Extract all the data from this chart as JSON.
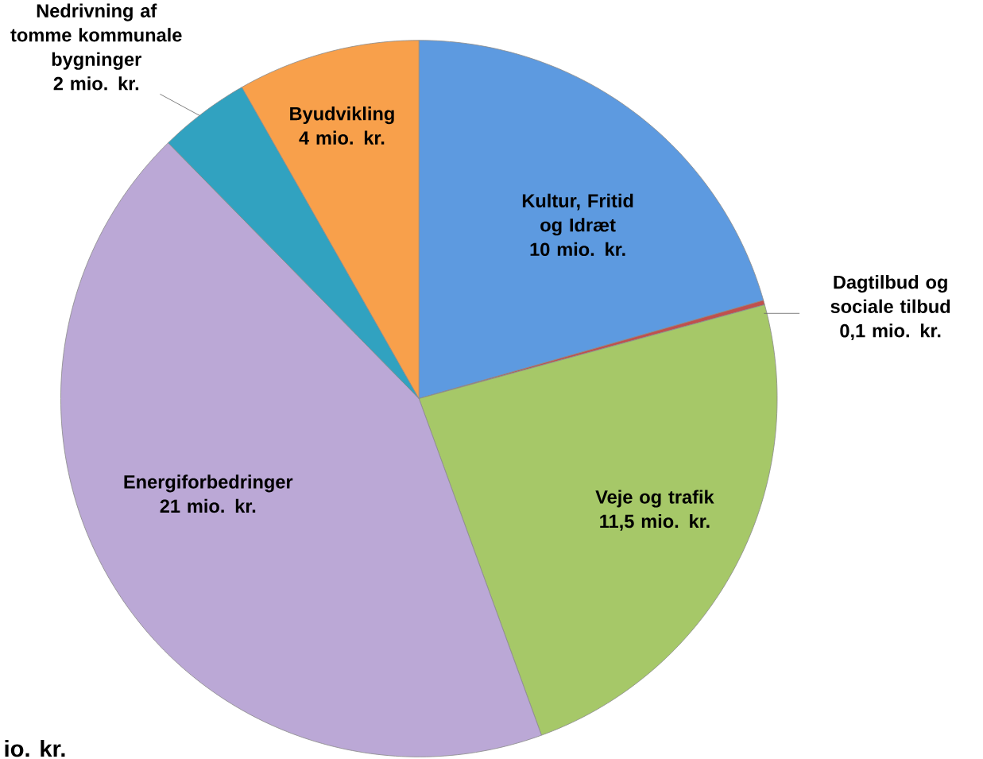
{
  "chart_data": {
    "type": "pie",
    "categories": [
      "Kultur, Fritid og Idræt",
      "Dagtilbud og sociale tilbud",
      "Veje og trafik",
      "Energiforbedringer",
      "Nedrivning af tomme kommunale bygninger",
      "Byudvikling"
    ],
    "values": [
      10,
      0.1,
      11.5,
      21,
      2,
      4
    ],
    "value_labels": [
      "10 mio. kr.",
      "0,1 mio. kr.",
      "11,5 mio. kr.",
      "21 mio. kr.",
      "2 mio. kr.",
      "4 mio. kr."
    ],
    "colors": [
      "#5d9ae0",
      "#c0504d",
      "#a6c868",
      "#bba8d6",
      "#31a2c0",
      "#f8a04b"
    ],
    "annotations": [
      "io. kr."
    ]
  }
}
